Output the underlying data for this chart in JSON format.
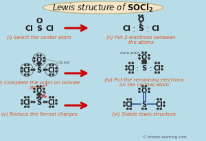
{
  "title": "Lewis structure of SOCl₂",
  "bg_color": "#b8dce8",
  "title_bg": "#f5e6c8",
  "title_color": "#222222",
  "atom_color": "#1a1a1a",
  "step_label_color": "#e05010",
  "arrow_color": "#cc0000",
  "dot_color": "#333333",
  "bond_color": "#4466aa",
  "watermark": "© knords learning.com",
  "steps": [
    {
      "label": "(i) Select the center atom"
    },
    {
      "label": "(ii) Put 2 electrons between\nthe atoms"
    },
    {
      "label": "(iii) Complete the octet on outside\natoms"
    },
    {
      "label": "(iv) Put the remaining electrons\non the central atom"
    },
    {
      "label": "(v) Reduce the formal charges"
    },
    {
      "label": "(vi) Stable lewis structure"
    }
  ]
}
